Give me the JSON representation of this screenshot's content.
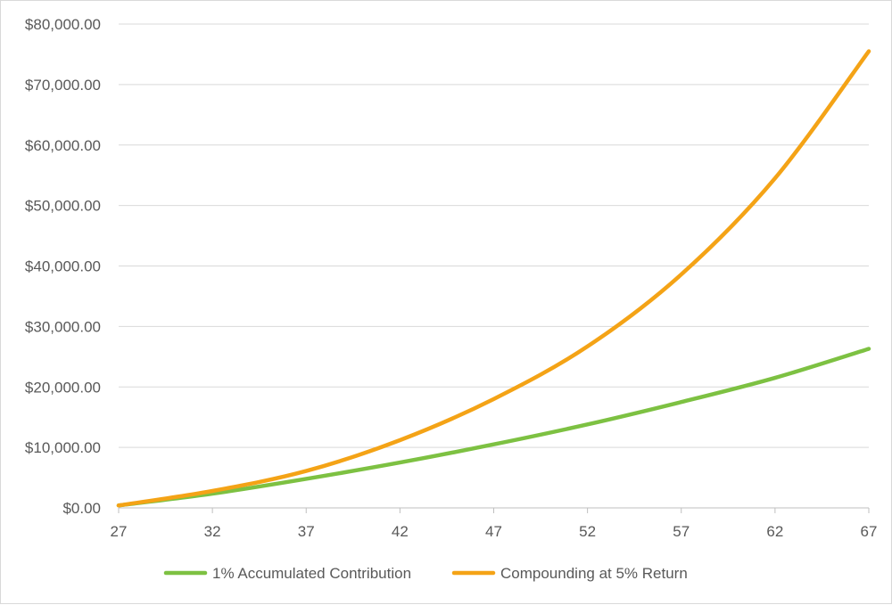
{
  "chart_data": {
    "type": "line",
    "title": "",
    "xlabel": "",
    "ylabel": "",
    "x": [
      27,
      32,
      37,
      42,
      47,
      52,
      57,
      62,
      67
    ],
    "xlim": [
      27,
      67
    ],
    "ylim": [
      0,
      80000
    ],
    "y_ticks": [
      0,
      10000,
      20000,
      30000,
      40000,
      50000,
      60000,
      70000,
      80000
    ],
    "y_tick_labels": [
      "$0.00",
      "$10,000.00",
      "$20,000.00",
      "$30,000.00",
      "$40,000.00",
      "$50,000.00",
      "$60,000.00",
      "$70,000.00",
      "$80,000.00"
    ],
    "x_tick_labels": [
      "27",
      "32",
      "37",
      "42",
      "47",
      "52",
      "57",
      "62",
      "67"
    ],
    "grid": true,
    "legend_position": "bottom",
    "series": [
      {
        "name": "1% Accumulated Contribution",
        "color": "#7dc142",
        "values": [
          400,
          2350,
          4800,
          7500,
          10500,
          13800,
          17500,
          21500,
          26300
        ]
      },
      {
        "name": "Compounding at 5% Return",
        "color": "#f4a316",
        "values": [
          400,
          2800,
          6100,
          11200,
          18000,
          26700,
          38600,
          54500,
          75500
        ]
      }
    ]
  }
}
